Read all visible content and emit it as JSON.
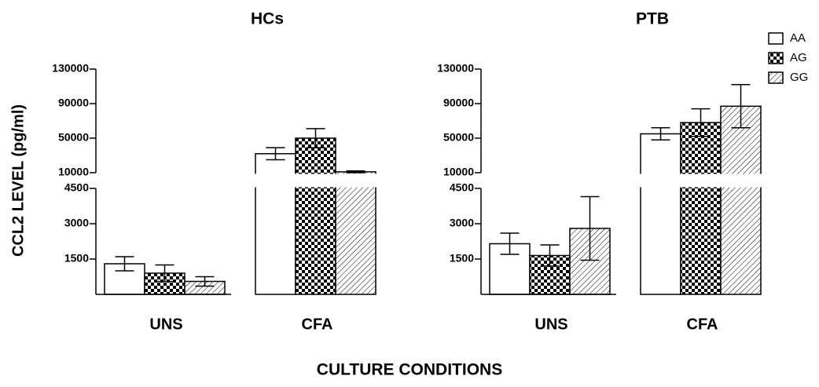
{
  "y_label": "CCL2 LEVEL  (pg/ml)",
  "x_label": "CULTURE CONDITIONS",
  "chart_data": [
    {
      "type": "bar",
      "title": "HCs",
      "categories": [
        "UNS",
        "CFA"
      ],
      "y_segments": [
        {
          "ylim": [
            0,
            4500
          ],
          "yticks": [
            1500,
            3000,
            4500
          ]
        },
        {
          "ylim": [
            10000,
            130000
          ],
          "yticks": [
            10000,
            50000,
            90000,
            130000
          ]
        }
      ],
      "series": [
        {
          "name": "AA",
          "fill": "white",
          "values": [
            1300,
            32000
          ],
          "errors": [
            300,
            7000
          ]
        },
        {
          "name": "AG",
          "fill": "checker",
          "values": [
            900,
            50000
          ],
          "errors": [
            350,
            11000
          ]
        },
        {
          "name": "GG",
          "fill": "hatch",
          "values": [
            550,
            11000
          ],
          "errors": [
            200,
            1000
          ]
        }
      ]
    },
    {
      "type": "bar",
      "title": "PTB",
      "categories": [
        "UNS",
        "CFA"
      ],
      "legend": "upper right",
      "y_segments": [
        {
          "ylim": [
            0,
            4500
          ],
          "yticks": [
            1500,
            3000,
            4500
          ]
        },
        {
          "ylim": [
            10000,
            130000
          ],
          "yticks": [
            10000,
            50000,
            90000,
            130000
          ]
        }
      ],
      "series": [
        {
          "name": "AA",
          "fill": "white",
          "values": [
            2150,
            55000
          ],
          "errors": [
            450,
            7000
          ]
        },
        {
          "name": "AG",
          "fill": "checker",
          "values": [
            1650,
            68000
          ],
          "errors": [
            450,
            16000
          ]
        },
        {
          "name": "GG",
          "fill": "hatch",
          "values": [
            2800,
            87000
          ],
          "errors": [
            1350,
            25000
          ]
        }
      ]
    }
  ]
}
